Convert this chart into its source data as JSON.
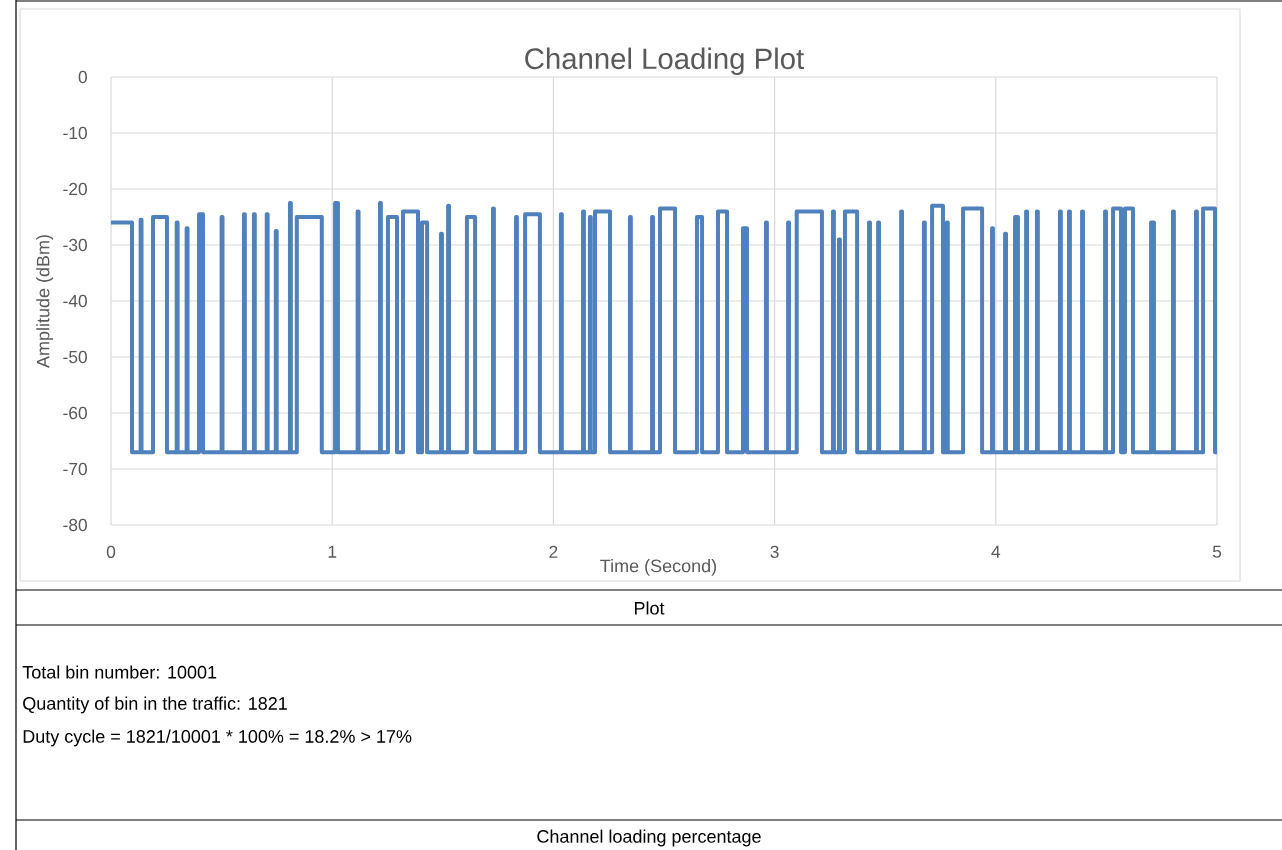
{
  "chart_data": {
    "type": "line",
    "title": "Channel Loading Plot",
    "xlabel": "Time (Second)",
    "ylabel": "Amplitude (dBm)",
    "x": [
      0,
      0.095,
      0.095,
      0.134,
      0.134,
      0.138,
      0.138,
      0.19,
      0.19,
      0.253,
      0.253,
      0.297,
      0.297,
      0.301,
      0.301,
      0.342,
      0.342,
      0.346,
      0.346,
      0.398,
      0.398,
      0.416,
      0.416,
      0.5,
      0.5,
      0.504,
      0.504,
      0.601,
      0.601,
      0.605,
      0.605,
      0.646,
      0.646,
      0.65,
      0.65,
      0.704,
      0.704,
      0.708,
      0.708,
      0.745,
      0.745,
      0.749,
      0.749,
      0.809,
      0.809,
      0.813,
      0.813,
      0.84,
      0.84,
      0.953,
      0.953,
      1.013,
      1.013,
      1.026,
      1.026,
      1.115,
      1.115,
      1.119,
      1.119,
      1.216,
      1.216,
      1.22,
      1.22,
      1.252,
      1.252,
      1.293,
      1.293,
      1.32,
      1.32,
      1.388,
      1.388,
      1.406,
      1.406,
      1.429,
      1.429,
      1.492,
      1.492,
      1.496,
      1.496,
      1.524,
      1.524,
      1.528,
      1.528,
      1.609,
      1.609,
      1.646,
      1.646,
      1.727,
      1.727,
      1.731,
      1.731,
      1.831,
      1.831,
      1.835,
      1.835,
      1.872,
      1.872,
      1.939,
      1.939,
      2.034,
      2.034,
      2.038,
      2.038,
      2.134,
      2.134,
      2.138,
      2.138,
      2.165,
      2.165,
      2.169,
      2.169,
      2.188,
      2.188,
      2.256,
      2.256,
      2.346,
      2.346,
      2.35,
      2.35,
      2.446,
      2.446,
      2.45,
      2.45,
      2.482,
      2.482,
      2.55,
      2.55,
      2.649,
      2.649,
      2.672,
      2.672,
      2.744,
      2.744,
      2.785,
      2.785,
      2.857,
      2.857,
      2.875,
      2.875,
      2.961,
      2.961,
      2.965,
      2.965,
      3.061,
      3.061,
      3.065,
      3.065,
      3.1,
      3.1,
      3.214,
      3.214,
      3.264,
      3.264,
      3.268,
      3.268,
      3.291,
      3.291,
      3.295,
      3.295,
      3.318,
      3.318,
      3.373,
      3.373,
      3.427,
      3.427,
      3.431,
      3.431,
      3.468,
      3.468,
      3.472,
      3.472,
      3.572,
      3.572,
      3.576,
      3.576,
      3.675,
      3.675,
      3.679,
      3.679,
      3.712,
      3.712,
      3.761,
      3.761,
      3.779,
      3.779,
      3.783,
      3.783,
      3.852,
      3.852,
      3.938,
      3.938,
      3.983,
      3.983,
      3.987,
      3.987,
      4.042,
      4.042,
      4.046,
      4.046,
      4.087,
      4.087,
      4.1,
      4.1,
      4.137,
      4.137,
      4.141,
      4.141,
      4.186,
      4.186,
      4.19,
      4.19,
      4.29,
      4.29,
      4.294,
      4.294,
      4.331,
      4.331,
      4.335,
      4.335,
      4.39,
      4.39,
      4.394,
      4.394,
      4.494,
      4.494,
      4.498,
      4.498,
      4.53,
      4.53,
      4.566,
      4.566,
      4.584,
      4.584,
      4.62,
      4.62,
      4.702,
      4.702,
      4.715,
      4.715,
      4.801,
      4.801,
      4.805,
      4.805,
      4.905,
      4.905,
      4.909,
      4.909,
      4.937,
      4.937,
      4.991,
      4.991,
      5
    ],
    "series": [
      {
        "color": "#4f81bd",
        "values": [
          -26,
          -26,
          -67,
          -67,
          -25.5,
          -25.5,
          -67,
          -67,
          -25,
          -25,
          -67,
          -67,
          -26,
          -26,
          -67,
          -67,
          -27,
          -27,
          -67,
          -67,
          -24.5,
          -24.5,
          -67,
          -67,
          -25,
          -25,
          -67,
          -67,
          -24.5,
          -24.5,
          -67,
          -67,
          -24.5,
          -24.5,
          -67,
          -67,
          -24.5,
          -24.5,
          -67,
          -67,
          -27.5,
          -27.5,
          -67,
          -67,
          -22.5,
          -22.5,
          -67,
          -67,
          -25,
          -25,
          -67,
          -67,
          -22.5,
          -22.5,
          -67,
          -67,
          -24,
          -24,
          -67,
          -67,
          -22.5,
          -22.5,
          -67,
          -67,
          -25,
          -25,
          -67,
          -67,
          -24,
          -24,
          -67,
          -67,
          -26,
          -26,
          -67,
          -67,
          -28,
          -28,
          -67,
          -67,
          -23,
          -23,
          -67,
          -67,
          -25,
          -25,
          -67,
          -67,
          -23.5,
          -23.5,
          -67,
          -67,
          -25,
          -25,
          -67,
          -67,
          -24.5,
          -24.5,
          -67,
          -67,
          -24.5,
          -24.5,
          -67,
          -67,
          -24,
          -24,
          -67,
          -67,
          -25,
          -25,
          -67,
          -67,
          -24,
          -24,
          -67,
          -67,
          -25,
          -25,
          -67,
          -67,
          -25,
          -25,
          -67,
          -67,
          -23.5,
          -23.5,
          -67,
          -67,
          -25,
          -25,
          -67,
          -67,
          -24,
          -24,
          -67,
          -67,
          -27,
          -27,
          -67,
          -67,
          -26,
          -26,
          -67,
          -67,
          -26,
          -26,
          -67,
          -67,
          -24,
          -24,
          -67,
          -67,
          -24,
          -24,
          -67,
          -67,
          -29,
          -29,
          -67,
          -67,
          -24,
          -24,
          -67,
          -67,
          -26,
          -26,
          -67,
          -67,
          -26,
          -26,
          -67,
          -67,
          -24,
          -24,
          -67,
          -67,
          -26,
          -26,
          -67,
          -67,
          -23,
          -23,
          -67,
          -67,
          -26,
          -26,
          -67,
          -67,
          -23.5,
          -23.5,
          -67,
          -67,
          -27,
          -27,
          -67,
          -67,
          -28,
          -28,
          -67,
          -67,
          -25,
          -25,
          -67,
          -67,
          -24,
          -24,
          -67,
          -67,
          -24,
          -24,
          -67,
          -67,
          -24,
          -24,
          -67,
          -67,
          -24,
          -24,
          -67,
          -67,
          -24,
          -24,
          -67,
          -67,
          -24,
          -24,
          -67,
          -67,
          -23.5,
          -23.5,
          -67,
          -67,
          -23.5,
          -23.5,
          -67,
          -67,
          -26,
          -26,
          -67,
          -67,
          -24,
          -24,
          -67,
          -67,
          -24,
          -24,
          -67,
          -67,
          -23.5,
          -23.5,
          -67,
          -67
        ]
      }
    ],
    "xlim": [
      0,
      5
    ],
    "ylim": [
      -80,
      0
    ],
    "xticks": [
      0,
      1,
      2,
      3,
      4,
      5
    ],
    "yticks": [
      -80,
      -70,
      -60,
      -50,
      -40,
      -30,
      -20,
      -10,
      0
    ],
    "grid": true,
    "annotations": [
      "Plot",
      "Total bin number: 10001",
      "Quantity of bin in the traffic: 1821",
      "Duty cycle = 1821/10001 * 100% = 18.2% > 17%",
      "Channel loading percentage"
    ]
  }
}
